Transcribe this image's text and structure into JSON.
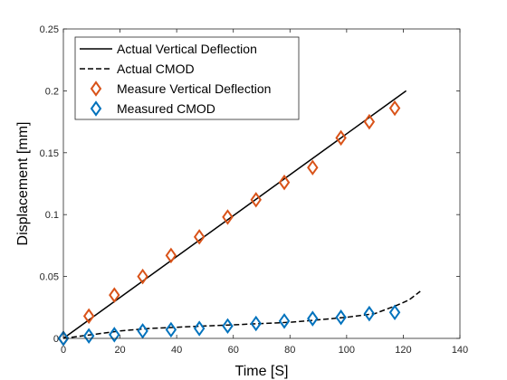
{
  "chart_data": {
    "type": "line",
    "xlabel": "Time [S]",
    "ylabel": "Displacement [mm]",
    "xlim": [
      0,
      140
    ],
    "ylim": [
      0,
      0.25
    ],
    "x_ticks": [
      0,
      20,
      40,
      60,
      80,
      100,
      120,
      140
    ],
    "y_ticks": [
      0,
      0.05,
      0.1,
      0.15,
      0.2,
      0.25
    ],
    "x_tick_labels": [
      "0",
      "20",
      "40",
      "60",
      "80",
      "100",
      "120",
      "140"
    ],
    "y_tick_labels": [
      "0",
      "0.05",
      "0.1",
      "0.15",
      "0.2",
      "0.25"
    ],
    "grid": false,
    "legend_position": "top-left",
    "series": [
      {
        "name": "Actual Vertical Deflection",
        "kind": "line",
        "style": "solid",
        "color": "#000000",
        "x": [
          0,
          121
        ],
        "y": [
          0,
          0.2
        ]
      },
      {
        "name": "Actual CMOD",
        "kind": "line",
        "style": "dashed",
        "color": "#000000",
        "x": [
          0,
          10,
          20,
          30,
          40,
          50,
          60,
          70,
          80,
          90,
          100,
          110,
          118,
          122,
          126
        ],
        "y": [
          0,
          0.003,
          0.006,
          0.008,
          0.009,
          0.01,
          0.011,
          0.012,
          0.013,
          0.015,
          0.017,
          0.02,
          0.027,
          0.031,
          0.038
        ]
      },
      {
        "name": "Measure Vertical Deflection",
        "kind": "scatter",
        "marker": "diamond",
        "color": "#d95319",
        "x": [
          0,
          9,
          18,
          28,
          38,
          48,
          58,
          68,
          78,
          88,
          98,
          108,
          117
        ],
        "y": [
          0,
          0.018,
          0.035,
          0.05,
          0.067,
          0.082,
          0.098,
          0.112,
          0.126,
          0.138,
          0.162,
          0.175,
          0.186
        ]
      },
      {
        "name": "Measured CMOD",
        "kind": "scatter",
        "marker": "diamond",
        "color": "#0072bd",
        "x": [
          0,
          9,
          18,
          28,
          38,
          48,
          58,
          68,
          78,
          88,
          98,
          108,
          117
        ],
        "y": [
          0,
          0.002,
          0.003,
          0.006,
          0.007,
          0.008,
          0.01,
          0.012,
          0.014,
          0.016,
          0.017,
          0.02,
          0.021
        ]
      }
    ]
  }
}
